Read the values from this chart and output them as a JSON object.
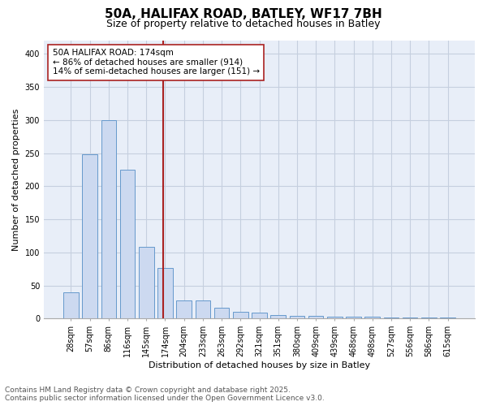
{
  "title": "50A, HALIFAX ROAD, BATLEY, WF17 7BH",
  "subtitle": "Size of property relative to detached houses in Batley",
  "xlabel": "Distribution of detached houses by size in Batley",
  "ylabel": "Number of detached properties",
  "categories": [
    "28sqm",
    "57sqm",
    "86sqm",
    "116sqm",
    "145sqm",
    "174sqm",
    "204sqm",
    "233sqm",
    "263sqm",
    "292sqm",
    "321sqm",
    "351sqm",
    "380sqm",
    "409sqm",
    "439sqm",
    "468sqm",
    "498sqm",
    "527sqm",
    "556sqm",
    "586sqm",
    "615sqm"
  ],
  "values": [
    40,
    248,
    300,
    225,
    108,
    77,
    27,
    27,
    16,
    10,
    9,
    5,
    4,
    4,
    3,
    3,
    3,
    2,
    1,
    1,
    2
  ],
  "highlight_index": 5,
  "bar_color": "#ccd9f0",
  "bar_edge_color": "#6699cc",
  "highlight_line_color": "#aa2222",
  "annotation_text": "50A HALIFAX ROAD: 174sqm\n← 86% of detached houses are smaller (914)\n14% of semi-detached houses are larger (151) →",
  "annotation_box_color": "#ffffff",
  "annotation_box_edge": "#aa2222",
  "ylim": [
    0,
    420
  ],
  "yticks": [
    0,
    50,
    100,
    150,
    200,
    250,
    300,
    350,
    400
  ],
  "grid_color": "#c5cfdf",
  "background_color": "#e8eef8",
  "footer_line1": "Contains HM Land Registry data © Crown copyright and database right 2025.",
  "footer_line2": "Contains public sector information licensed under the Open Government Licence v3.0.",
  "title_fontsize": 11,
  "subtitle_fontsize": 9,
  "annotation_fontsize": 7.5,
  "footer_fontsize": 6.5,
  "tick_fontsize": 7,
  "ylabel_fontsize": 8,
  "xlabel_fontsize": 8
}
